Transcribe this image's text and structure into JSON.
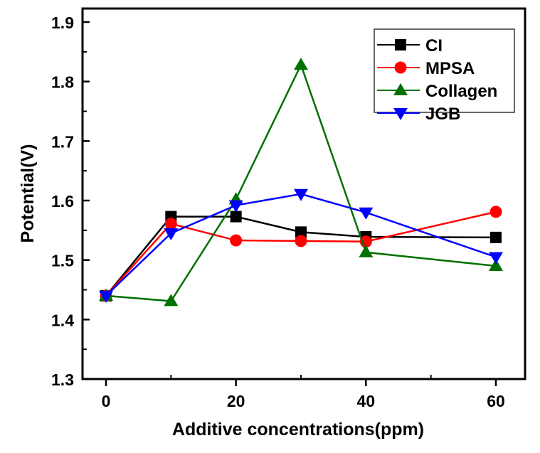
{
  "chart_data": {
    "type": "line",
    "title": "",
    "xlabel": "Additive concentrations(ppm)",
    "ylabel": "Potential(V)",
    "x": [
      0,
      10,
      20,
      30,
      40,
      60
    ],
    "xlim": [
      -5,
      65
    ],
    "ylim": [
      1.3,
      1.9
    ],
    "xticks": [
      0,
      20,
      40,
      60
    ],
    "xtick_labels": [
      "0",
      "20",
      "40",
      "60"
    ],
    "xminor": [
      10,
      30,
      50
    ],
    "yticks": [
      1.3,
      1.4,
      1.5,
      1.6,
      1.7,
      1.8,
      1.9
    ],
    "ytick_labels": [
      "1.3",
      "1.4",
      "1.5",
      "1.6",
      "1.7",
      "1.8",
      "1.9"
    ],
    "yminor": [
      1.35,
      1.45,
      1.55,
      1.65,
      1.75,
      1.85
    ],
    "grid": false,
    "legend_position": "top-right",
    "series": [
      {
        "name": "CI",
        "color": "#000000",
        "marker": "square",
        "values": [
          1.44,
          1.573,
          1.573,
          1.547,
          1.539,
          1.538
        ]
      },
      {
        "name": "MPSA",
        "color": "#ff0000",
        "marker": "circle",
        "values": [
          1.44,
          1.561,
          1.533,
          1.532,
          1.531,
          1.581
        ]
      },
      {
        "name": "Collagen",
        "color": "#007000",
        "marker": "triangle-up",
        "values": [
          1.44,
          1.431,
          1.602,
          1.828,
          1.513,
          1.49
        ]
      },
      {
        "name": "JGB",
        "color": "#0000ff",
        "marker": "triangle-down",
        "values": [
          1.44,
          1.545,
          1.592,
          1.611,
          1.58,
          1.505
        ]
      }
    ]
  }
}
